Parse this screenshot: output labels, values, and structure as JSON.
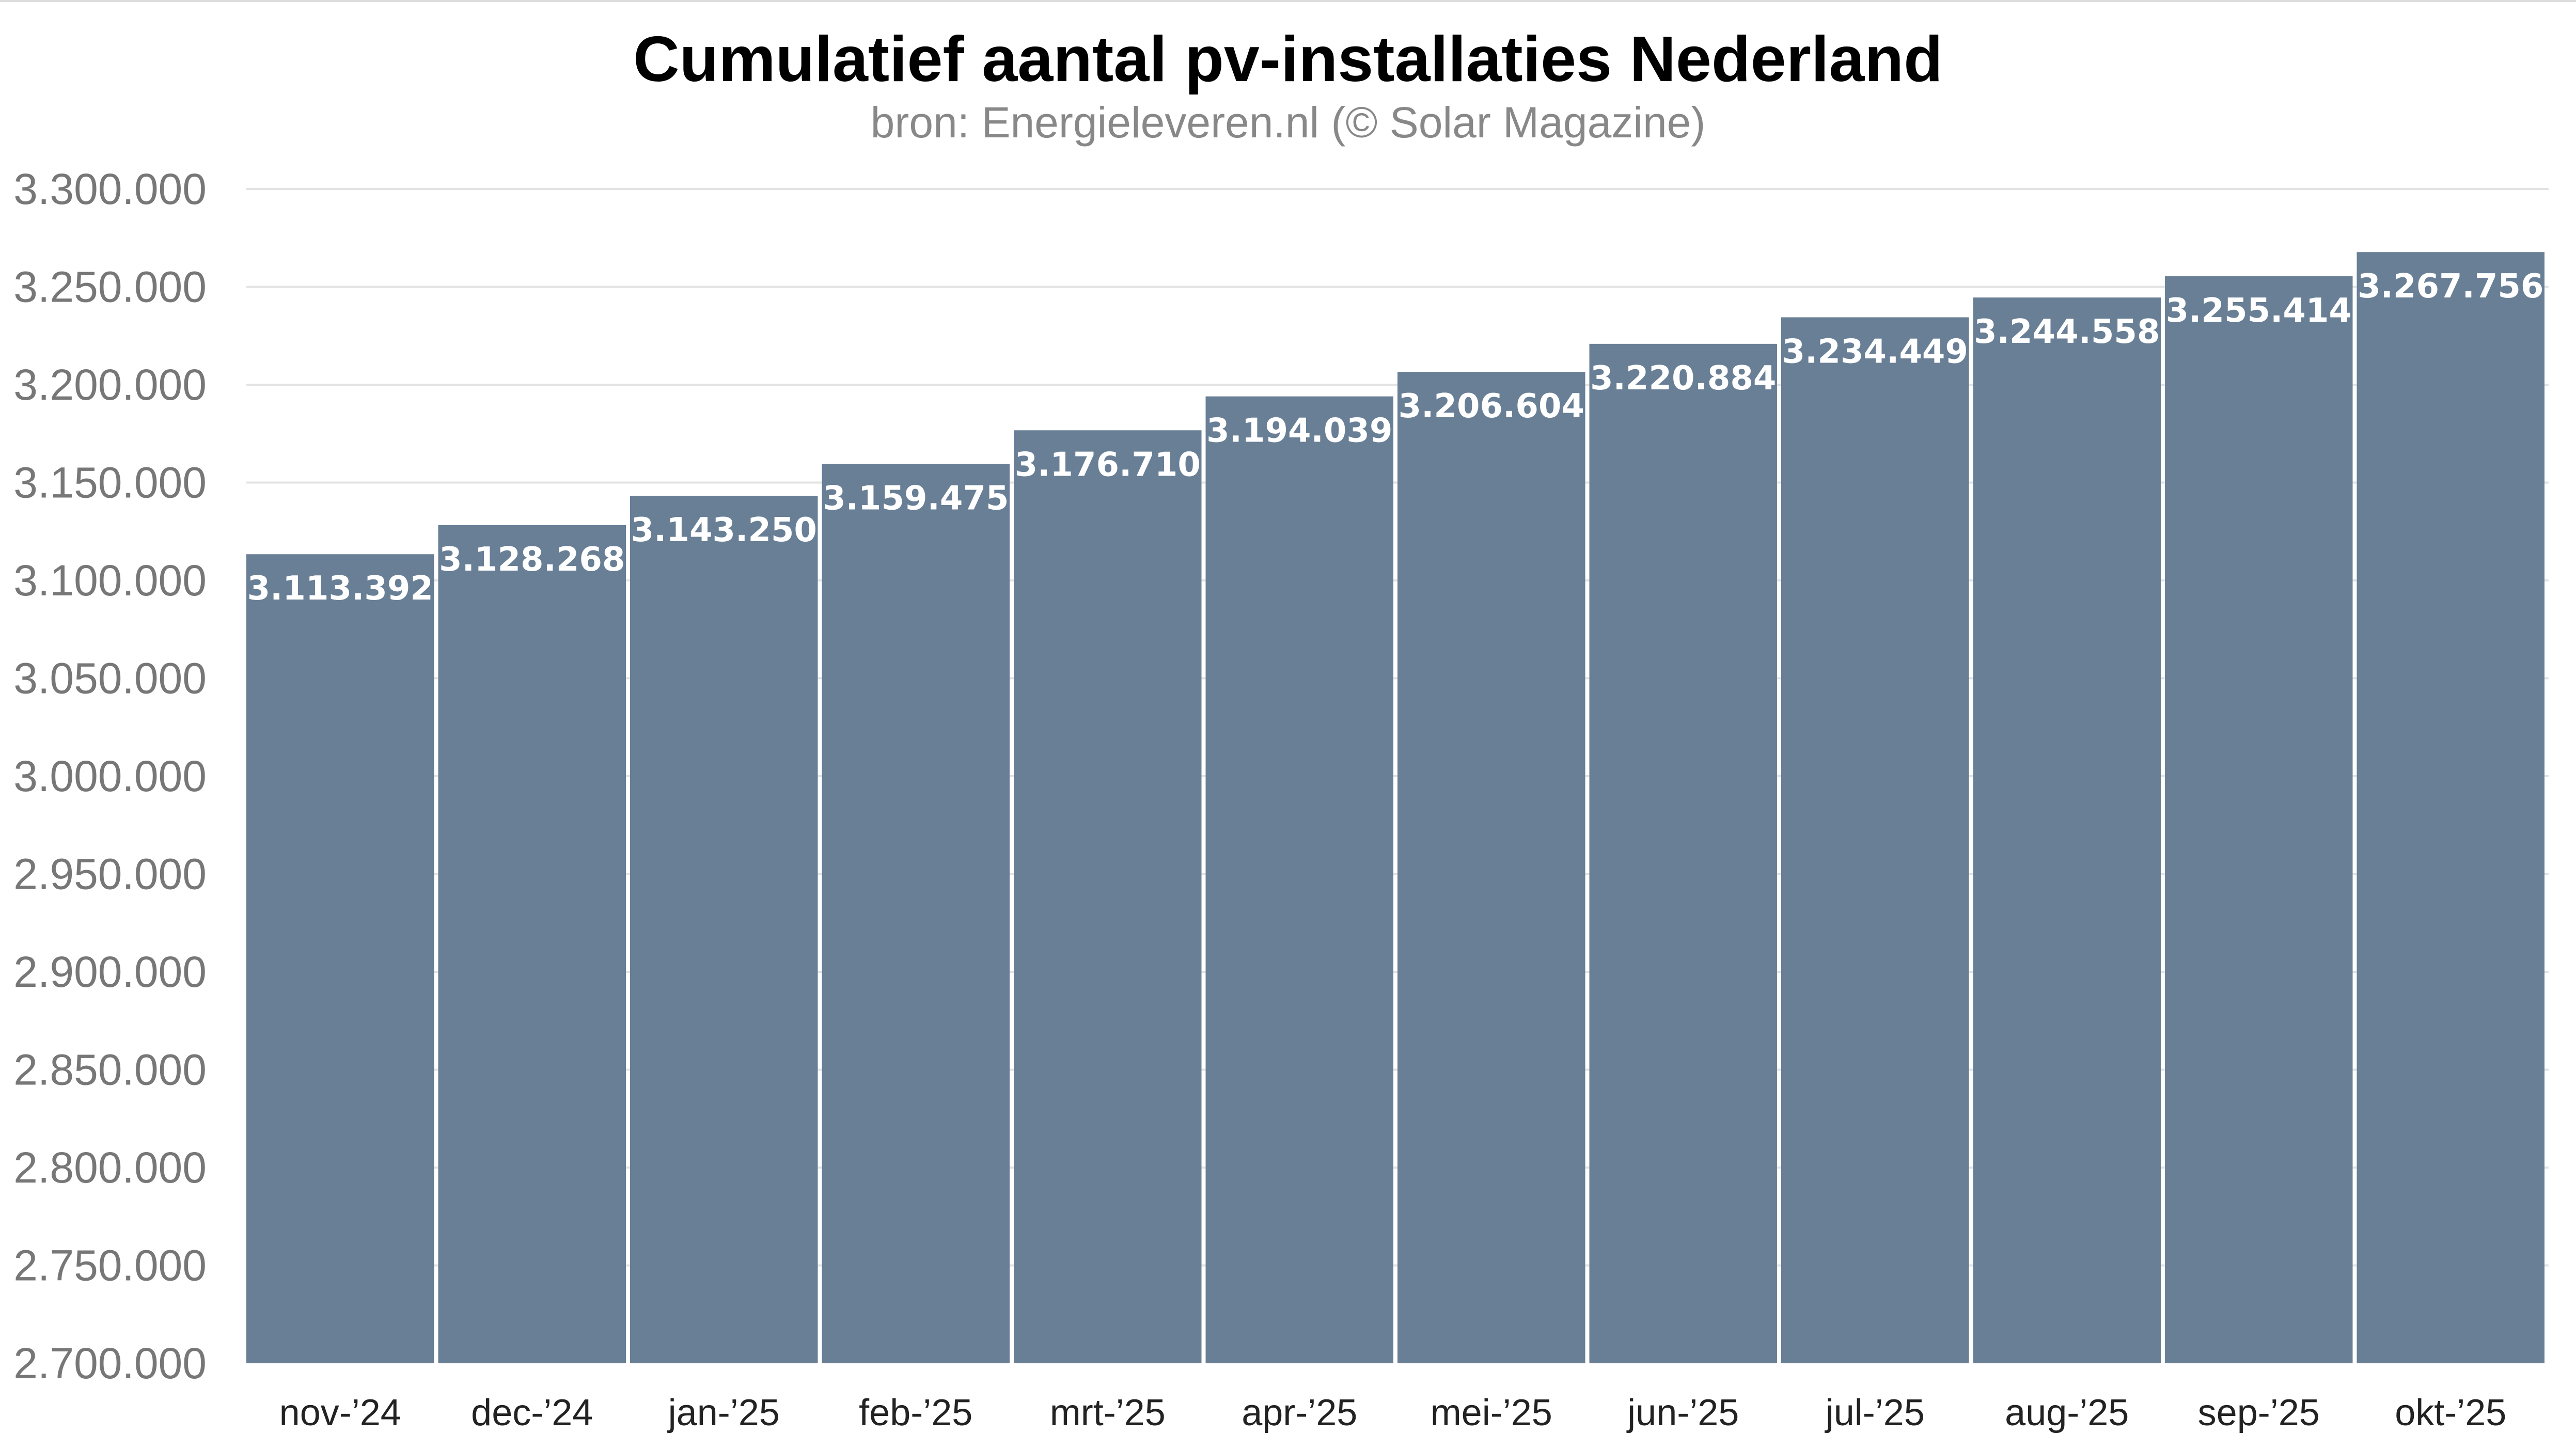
{
  "chart_data": {
    "type": "bar",
    "title": "Cumulatief aantal pv-installaties Nederland",
    "subtitle": "bron: Energieleveren.nl (© Solar Magazine)",
    "categories": [
      "nov-’24",
      "dec-’24",
      "jan-’25",
      "feb-’25",
      "mrt-’25",
      "apr-’25",
      "mei-’25",
      "jun-’25",
      "jul-’25",
      "aug-’25",
      "sep-’25",
      "okt-’25"
    ],
    "values": [
      3113392,
      3128268,
      3143250,
      3159475,
      3176710,
      3194039,
      3206604,
      3220884,
      3234449,
      3244558,
      3255414,
      3267756
    ],
    "value_labels": [
      "3.113.392",
      "3.128.268",
      "3.143.250",
      "3.159.475",
      "3.176.710",
      "3.194.039",
      "3.206.604",
      "3.220.884",
      "3.234.449",
      "3.244.558",
      "3.255.414",
      "3.267.756"
    ],
    "yticks": [
      2700000,
      2750000,
      2800000,
      2850000,
      2900000,
      2950000,
      3000000,
      3050000,
      3100000,
      3150000,
      3200000,
      3250000,
      3300000
    ],
    "ytick_labels": [
      "2.700.000",
      "2.750.000",
      "2.800.000",
      "2.850.000",
      "2.900.000",
      "2.950.000",
      "3.000.000",
      "3.050.000",
      "3.100.000",
      "3.150.000",
      "3.200.000",
      "3.250.000",
      "3.300.000"
    ],
    "ylim": [
      2700000,
      3300000
    ],
    "xlabel": "",
    "ylabel": "",
    "grid": true,
    "legend": "none",
    "bar_color": "#687f96",
    "grid_color": "#e3e3e3"
  }
}
